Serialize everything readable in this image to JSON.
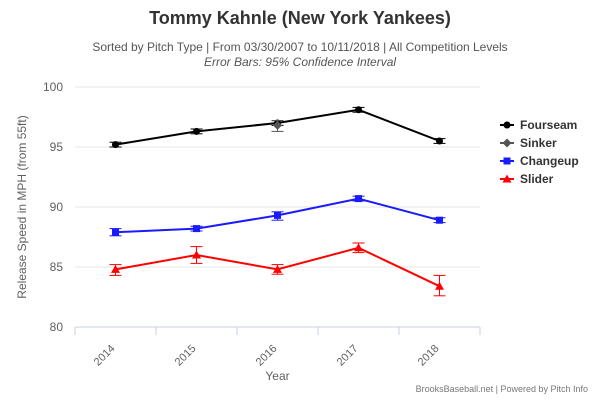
{
  "chart_data": {
    "type": "line",
    "title": "Tommy Kahnle (New York Yankees)",
    "subtitle": "Sorted by Pitch Type | From 03/30/2007 to 10/11/2018 | All Competition Levels",
    "subtitle2": "Error Bars: 95% Confidence Interval",
    "xlabel": "Year",
    "ylabel": "Release Speed in MPH (from 55ft)",
    "categories": [
      "2014",
      "2015",
      "2016",
      "2017",
      "2018"
    ],
    "ylim": [
      80,
      100
    ],
    "yticks": [
      "80",
      "85",
      "90",
      "95",
      "100"
    ],
    "grid": true,
    "legend_position": "right",
    "credits": "BrooksBaseball.net | Powered by Pitch Info",
    "series": [
      {
        "name": "Fourseam",
        "color": "#000000",
        "marker": "circle",
        "values": [
          95.2,
          96.3,
          97.0,
          98.1,
          95.5
        ],
        "err_low": [
          95.0,
          96.1,
          96.8,
          97.9,
          95.3
        ],
        "err_high": [
          95.4,
          96.5,
          97.2,
          98.3,
          95.7
        ]
      },
      {
        "name": "Sinker",
        "color": "#555555",
        "marker": "diamond",
        "values": [
          null,
          null,
          96.8,
          null,
          null
        ],
        "err_low": [
          null,
          null,
          96.3,
          null,
          null
        ],
        "err_high": [
          null,
          null,
          97.2,
          null,
          null
        ]
      },
      {
        "name": "Changeup",
        "color": "#1a1aff",
        "marker": "square",
        "values": [
          87.9,
          88.2,
          89.3,
          90.7,
          88.9
        ],
        "err_low": [
          87.6,
          88.0,
          88.9,
          90.5,
          88.7
        ],
        "err_high": [
          88.2,
          88.4,
          89.6,
          90.9,
          89.1
        ]
      },
      {
        "name": "Slider",
        "color": "#ff0000",
        "marker": "triangle",
        "values": [
          84.8,
          86.0,
          84.8,
          86.6,
          83.4
        ],
        "err_low": [
          84.3,
          85.3,
          84.4,
          86.2,
          82.6
        ],
        "err_high": [
          85.2,
          86.7,
          85.2,
          87.0,
          84.3
        ]
      }
    ]
  }
}
